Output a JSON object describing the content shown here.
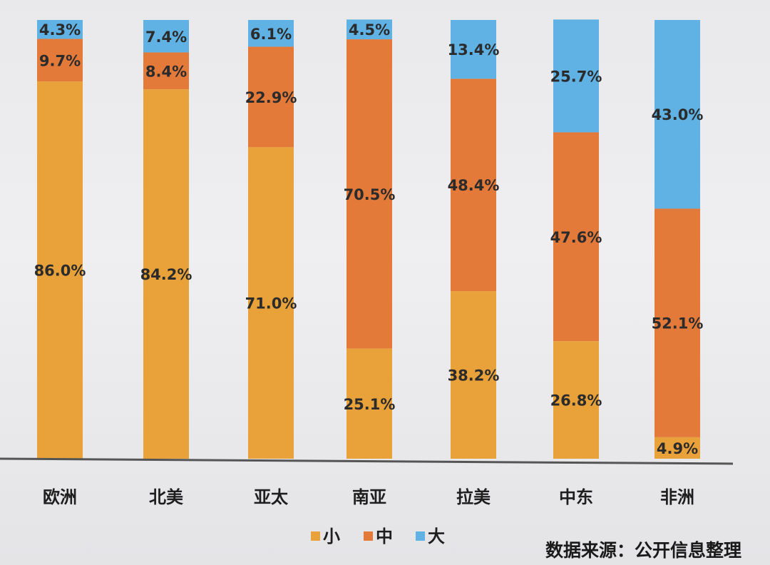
{
  "chart_data": {
    "type": "bar",
    "stacked": true,
    "percent": true,
    "categories": [
      "欧洲",
      "北美",
      "亚太",
      "南亚",
      "拉美",
      "中东",
      "非洲"
    ],
    "series": [
      {
        "name": "小",
        "color": "#e9a23a",
        "values": [
          86.0,
          84.2,
          71.0,
          25.1,
          38.2,
          26.8,
          4.9
        ]
      },
      {
        "name": "中",
        "color": "#e47a3a",
        "values": [
          9.7,
          8.4,
          22.9,
          70.5,
          48.4,
          47.6,
          52.1
        ]
      },
      {
        "name": "大",
        "color": "#5fb2e3",
        "values": [
          4.3,
          7.4,
          6.1,
          4.5,
          13.4,
          25.7,
          43.0
        ]
      }
    ],
    "data_labels": [
      [
        "86.0%",
        "84.2%",
        "71.0%",
        "25.1%",
        "38.2%",
        "26.8%",
        "4.9%"
      ],
      [
        "9.7%",
        "8.4%",
        "22.9%",
        "70.5%",
        "48.4%",
        "47.6%",
        "52.1%"
      ],
      [
        "4.3%",
        "7.4%",
        "6.1%",
        "4.5%",
        "13.4%",
        "25.7%",
        "43.0%"
      ]
    ],
    "ylim": [
      0,
      100
    ],
    "legend_position": "bottom",
    "grid": false
  },
  "source_note": "数据来源：公开信息整理"
}
